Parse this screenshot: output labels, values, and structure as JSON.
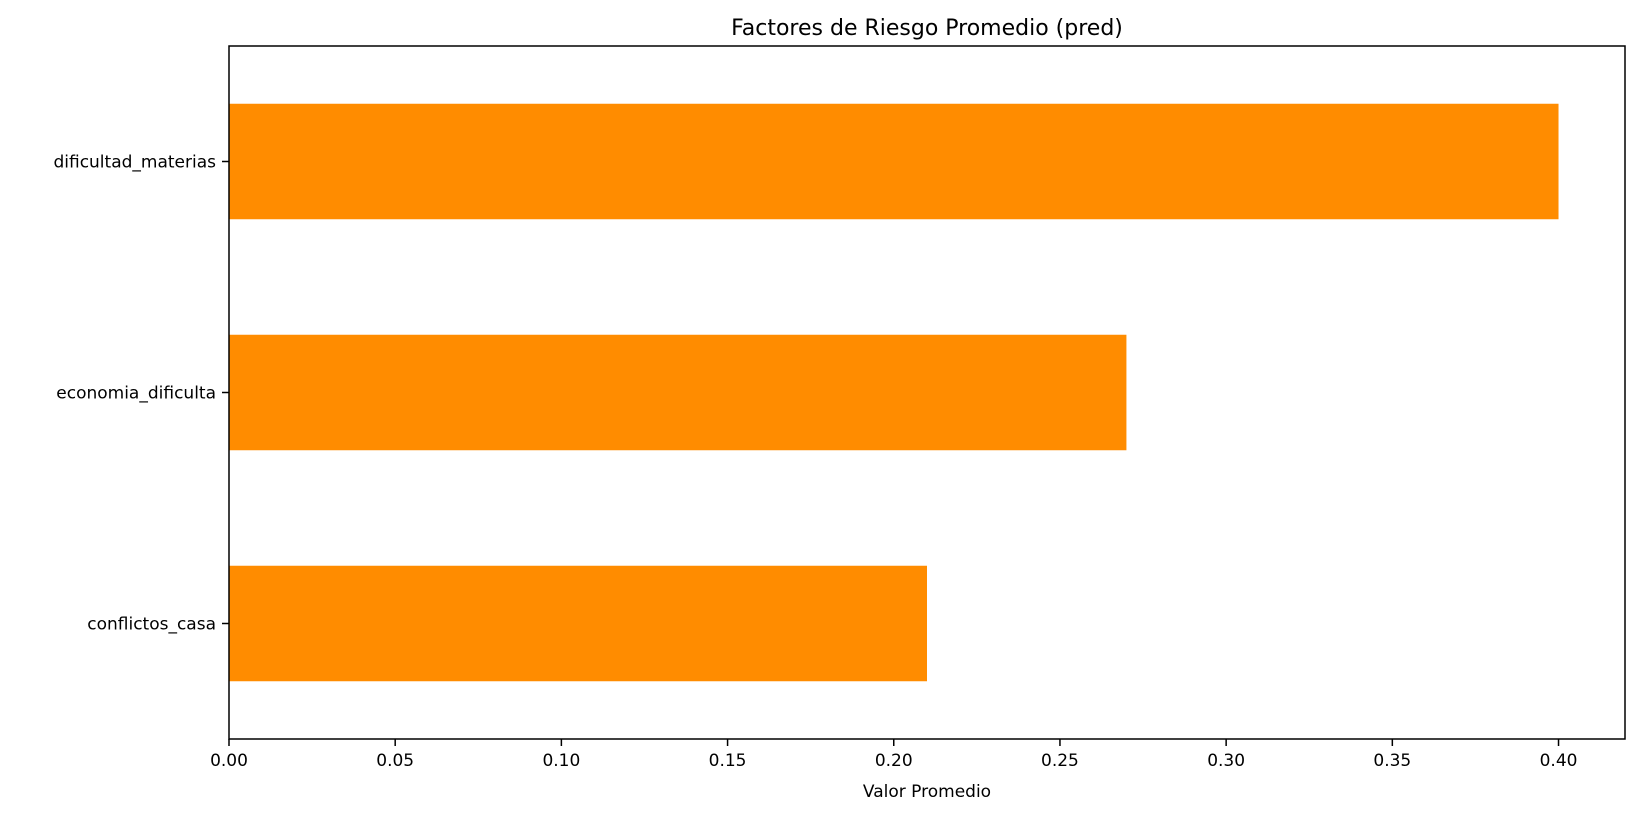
{
  "chart_data": {
    "type": "bar",
    "orientation": "horizontal",
    "title": "Factores de Riesgo Promedio (pred)",
    "xlabel": "Valor Promedio",
    "ylabel": "",
    "categories": [
      "dificultad_materias",
      "economia_dificulta",
      "conflictos_casa"
    ],
    "values": [
      0.4,
      0.27,
      0.21
    ],
    "xlim": [
      0.0,
      0.42
    ],
    "xticks": [
      "0.00",
      "0.05",
      "0.10",
      "0.15",
      "0.20",
      "0.25",
      "0.30",
      "0.35",
      "0.40"
    ],
    "bar_color": "#ff8c00",
    "grid": false,
    "legend": "none"
  }
}
